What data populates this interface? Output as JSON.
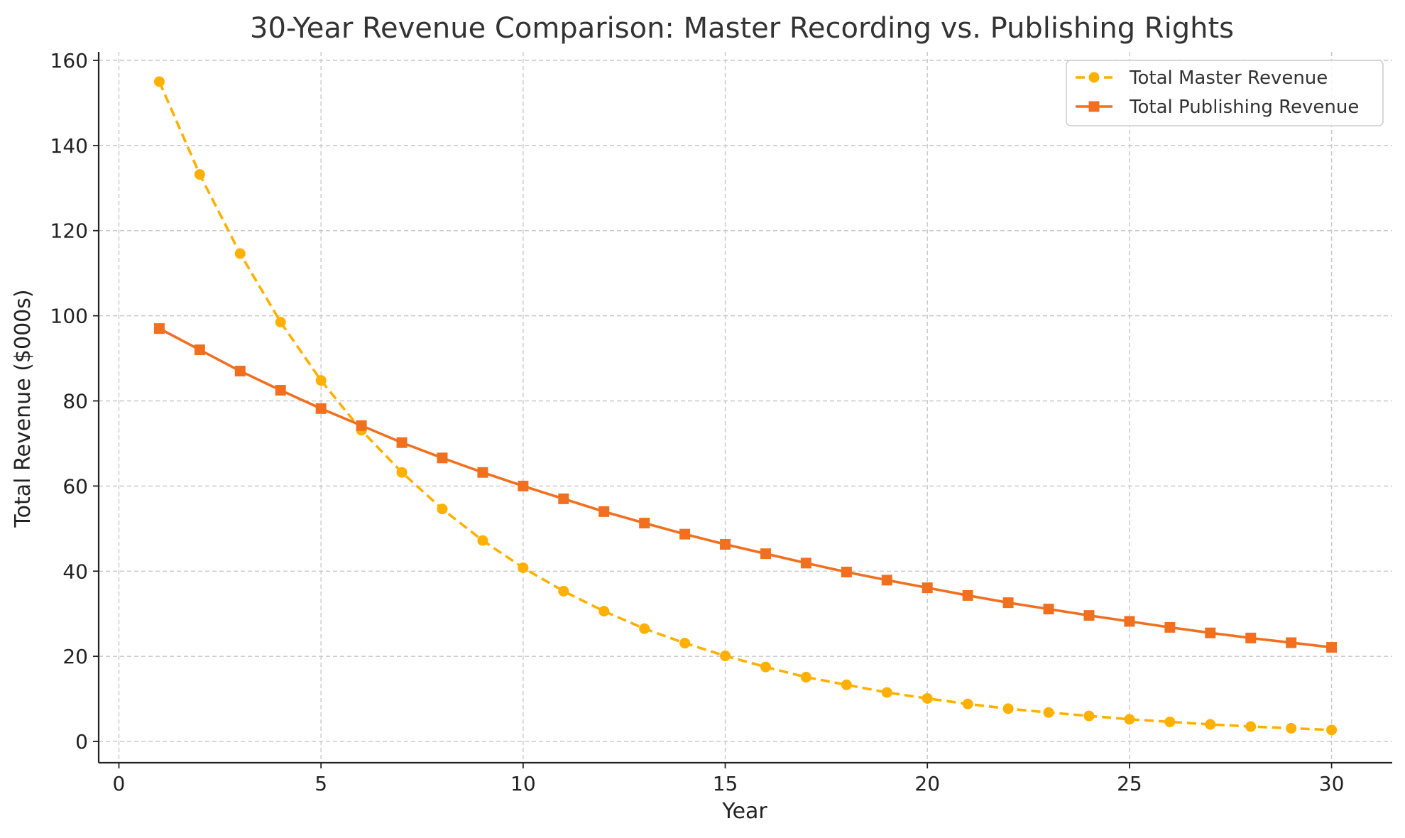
{
  "chart_data": {
    "type": "line",
    "title": "30-Year Revenue Comparison: Master Recording vs. Publishing Rights",
    "xlabel": "Year",
    "ylabel": "Total Revenue ($000s)",
    "xlim": [
      -0.5,
      31.5
    ],
    "ylim": [
      -5,
      162
    ],
    "x_ticks": [
      0,
      5,
      10,
      15,
      20,
      25,
      30
    ],
    "y_ticks": [
      0,
      20,
      40,
      60,
      80,
      100,
      120,
      140,
      160
    ],
    "grid": true,
    "legend_position": "top-right",
    "x": [
      1,
      2,
      3,
      4,
      5,
      6,
      7,
      8,
      9,
      10,
      11,
      12,
      13,
      14,
      15,
      16,
      17,
      18,
      19,
      20,
      21,
      22,
      23,
      24,
      25,
      26,
      27,
      28,
      29,
      30
    ],
    "series": [
      {
        "name": "Total Master Revenue",
        "color": "#FFB000",
        "line_style": "dashed",
        "marker": "circle",
        "values": [
          155,
          133.2,
          114.6,
          98.5,
          84.8,
          73.1,
          63.2,
          54.6,
          47.2,
          40.8,
          35.3,
          30.6,
          26.5,
          23.1,
          20.1,
          17.5,
          15.1,
          13.3,
          11.5,
          10.1,
          8.8,
          7.7,
          6.8,
          6.0,
          5.2,
          4.6,
          4.0,
          3.5,
          3.1,
          2.7
        ]
      },
      {
        "name": "Total Publishing Revenue",
        "color": "#F07020",
        "line_style": "solid",
        "marker": "square",
        "values": [
          97,
          92,
          87,
          82.5,
          78.2,
          74.2,
          70.2,
          66.6,
          63.2,
          60,
          57,
          54,
          51.3,
          48.7,
          46.3,
          44.1,
          41.9,
          39.8,
          37.9,
          36.1,
          34.3,
          32.6,
          31.1,
          29.6,
          28.2,
          26.8,
          25.5,
          24.3,
          23.2,
          22.1
        ]
      }
    ]
  }
}
